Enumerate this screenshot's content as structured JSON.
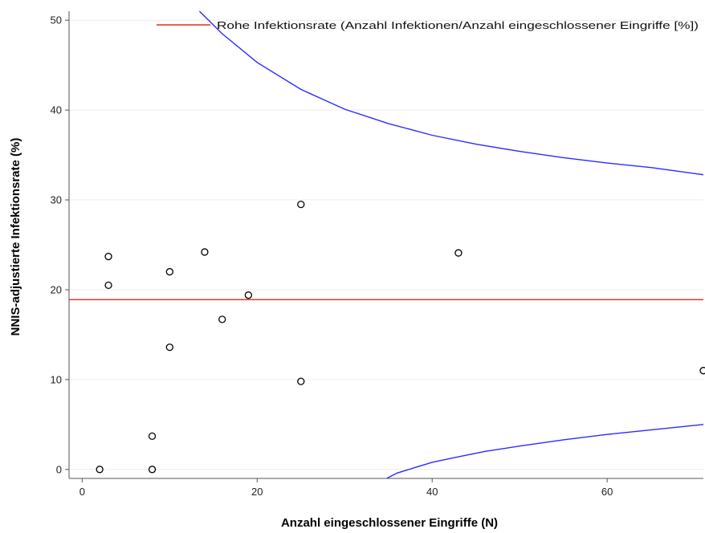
{
  "chart_data": {
    "type": "scatter",
    "xlabel": "Anzahl eingeschlossener Eingriffe (N)",
    "ylabel": "NNIS-adjustierte Infektionsrate (%)",
    "xlim": [
      -1.5,
      71
    ],
    "ylim": [
      -1,
      51
    ],
    "xticks": [
      0,
      20,
      40,
      60
    ],
    "yticks": [
      0,
      10,
      20,
      30,
      40,
      50
    ],
    "grid": true,
    "legend_position": "top-right",
    "points": [
      {
        "x": 2,
        "y": 0
      },
      {
        "x": 8,
        "y": 0
      },
      {
        "x": 8,
        "y": 3.7
      },
      {
        "x": 3,
        "y": 20.5
      },
      {
        "x": 3,
        "y": 23.7
      },
      {
        "x": 10,
        "y": 22
      },
      {
        "x": 10,
        "y": 13.6
      },
      {
        "x": 14,
        "y": 24.2
      },
      {
        "x": 16,
        "y": 16.7
      },
      {
        "x": 19,
        "y": 19.4
      },
      {
        "x": 25,
        "y": 29.5
      },
      {
        "x": 25,
        "y": 9.8
      },
      {
        "x": 43,
        "y": 24.1
      },
      {
        "x": 71,
        "y": 11
      }
    ],
    "reference_line": {
      "name": "Rohe Infektionsrate (Anzahl Infektionen/Anzahl eingeschlossener Eingriffe [%])",
      "y": 18.9,
      "color": "#e8271c"
    },
    "control_limits": {
      "color": "#2b2bff",
      "upper": [
        [
          13.4,
          51
        ],
        [
          16,
          48.5
        ],
        [
          20,
          45.3
        ],
        [
          25,
          42.3
        ],
        [
          30,
          40.1
        ],
        [
          35,
          38.5
        ],
        [
          40,
          37.2
        ],
        [
          45,
          36.2
        ],
        [
          50,
          35.4
        ],
        [
          55,
          34.7
        ],
        [
          60,
          34.1
        ],
        [
          65,
          33.6
        ],
        [
          71,
          32.8
        ]
      ],
      "lower": [
        [
          34.8,
          -1
        ],
        [
          36,
          -0.4
        ],
        [
          38,
          0.2
        ],
        [
          40,
          0.8
        ],
        [
          43,
          1.4
        ],
        [
          46,
          2.0
        ],
        [
          50,
          2.6
        ],
        [
          55,
          3.3
        ],
        [
          60,
          3.9
        ],
        [
          65,
          4.4
        ],
        [
          71,
          5.0
        ]
      ]
    }
  }
}
